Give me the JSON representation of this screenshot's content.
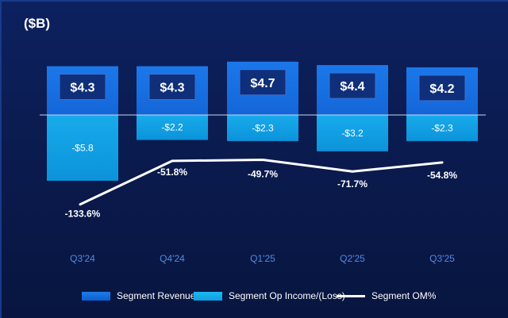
{
  "unit_label": "($B)",
  "colors": {
    "revenue": "#1466d8",
    "op_income": "#17abeb",
    "om_line": "#ffffff",
    "value_box": "#0f2f7a",
    "axis_label": "#4f8be0"
  },
  "chart_data": {
    "type": "bar",
    "categories": [
      "Q3'24",
      "Q4'24",
      "Q1'25",
      "Q2'25",
      "Q3'25"
    ],
    "series": [
      {
        "name": "Segment Revenue",
        "type": "bar",
        "values": [
          4.3,
          4.3,
          4.7,
          4.4,
          4.2
        ],
        "labels": [
          "$4.3",
          "$4.3",
          "$4.7",
          "$4.4",
          "$4.2"
        ]
      },
      {
        "name": "Segment Op Income/(Loss)",
        "type": "bar",
        "values": [
          -5.8,
          -2.2,
          -2.3,
          -3.2,
          -2.3
        ],
        "labels": [
          "-$5.8",
          "-$2.2",
          "-$2.3",
          "-$3.2",
          "-$2.3"
        ]
      },
      {
        "name": "Segment OM%",
        "type": "line",
        "values": [
          -133.6,
          -51.8,
          -49.7,
          -71.7,
          -54.8
        ],
        "labels": [
          "-133.6%",
          "-51.8%",
          "-49.7%",
          "-71.7%",
          "-54.8%"
        ]
      }
    ],
    "ylabel": "($B)",
    "grid": false,
    "legend": "bottom"
  }
}
